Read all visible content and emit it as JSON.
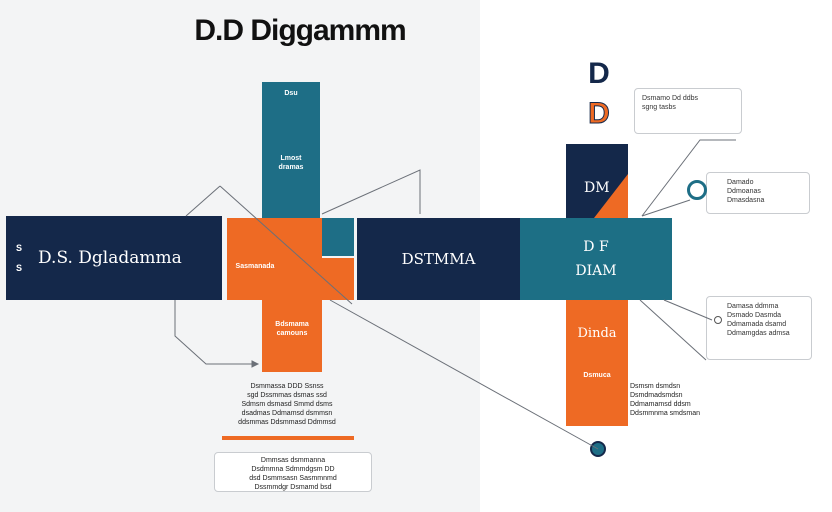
{
  "title": "D.D Diggammm",
  "legend": {
    "letter": "D"
  },
  "blocks": {
    "left_side": "S\nS",
    "left_label": "D.S. Dgladamma",
    "teal_top": "Dsu",
    "teal_top_sub": "Lmost\ndramas",
    "orange_label": "Sasmanada",
    "orange_sub": "Bdsmama\ncamouns",
    "center_label": "DSTMMA",
    "dm_tile": "DM",
    "right_teal": "D F\nDIAM",
    "right_orange": "Dinda",
    "right_orange_sub": "Dsmuca"
  },
  "callouts": {
    "top_right": "Dsmamo Dd ddbs\nsgng tasbs",
    "mid_right": "Damado\nDdmoanas\nDmasdasna",
    "bottom_right": "Damasa ddmma\nDsmado Dasmda\nDdmamada dsamd\nDdmamgdas admsa",
    "circle_letter": "O"
  },
  "notes": {
    "under_orange": "Dsmmassa DDD Ssnss\nsgd Dssmmas dsmas ssd\nSdmsm dsmasd Smmd dsms\ndsadmas Ddmamsd dsmmsn\nddsmmas Ddsmmasd Ddmmsd",
    "under_orange_2": "Dmmsas dsmmanna\nDsdmmna Sdmmdgsm DD\ndsd Dsmmsasn Sasmmnmd\nDssmmdgr Dsmamd bsd",
    "right_of_orange": "Dsmsm dsmdsn\nDsmdmadsmdsn\nDdmamamsd ddsm\nDdsmmnma smdsman"
  },
  "colors": {
    "navy": "#14284a",
    "teal": "#1e6e86",
    "orange": "#ee6a24"
  }
}
